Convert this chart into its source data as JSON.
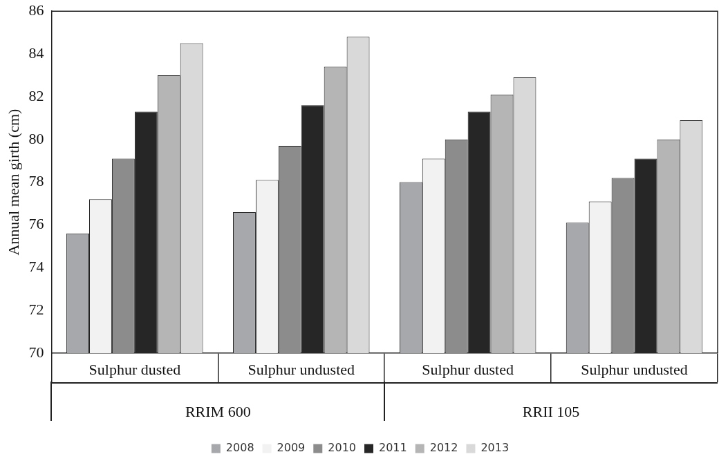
{
  "chart_data": {
    "type": "bar",
    "ylabel": "Annual mean girth (cm)",
    "categories": [
      "Sulphur dusted",
      "Sulphur undusted",
      "Sulphur dusted",
      "Sulphur undusted"
    ],
    "annotations": [
      "RRIM 600",
      "RRII 105"
    ],
    "series": [
      {
        "name": "2008",
        "color": "#a7a8ac",
        "values": [
          75.6,
          76.6,
          78.0,
          76.1
        ]
      },
      {
        "name": "2009",
        "color": "#f2f2f2",
        "values": [
          77.2,
          78.1,
          79.1,
          77.1
        ]
      },
      {
        "name": "2010",
        "color": "#8c8c8c",
        "values": [
          79.1,
          79.7,
          80.0,
          78.2
        ]
      },
      {
        "name": "2011",
        "color": "#262626",
        "values": [
          81.3,
          81.6,
          81.3,
          79.1
        ]
      },
      {
        "name": "2012",
        "color": "#b5b5b5",
        "values": [
          83.0,
          83.4,
          82.1,
          80.0
        ]
      },
      {
        "name": "2013",
        "color": "#d9d9d9",
        "values": [
          84.5,
          84.8,
          82.9,
          80.9
        ]
      }
    ],
    "ylim": [
      70,
      86
    ],
    "yticks": [
      70,
      72,
      74,
      76,
      78,
      80,
      82,
      84,
      86
    ],
    "grid": false,
    "legend": "bottom"
  }
}
